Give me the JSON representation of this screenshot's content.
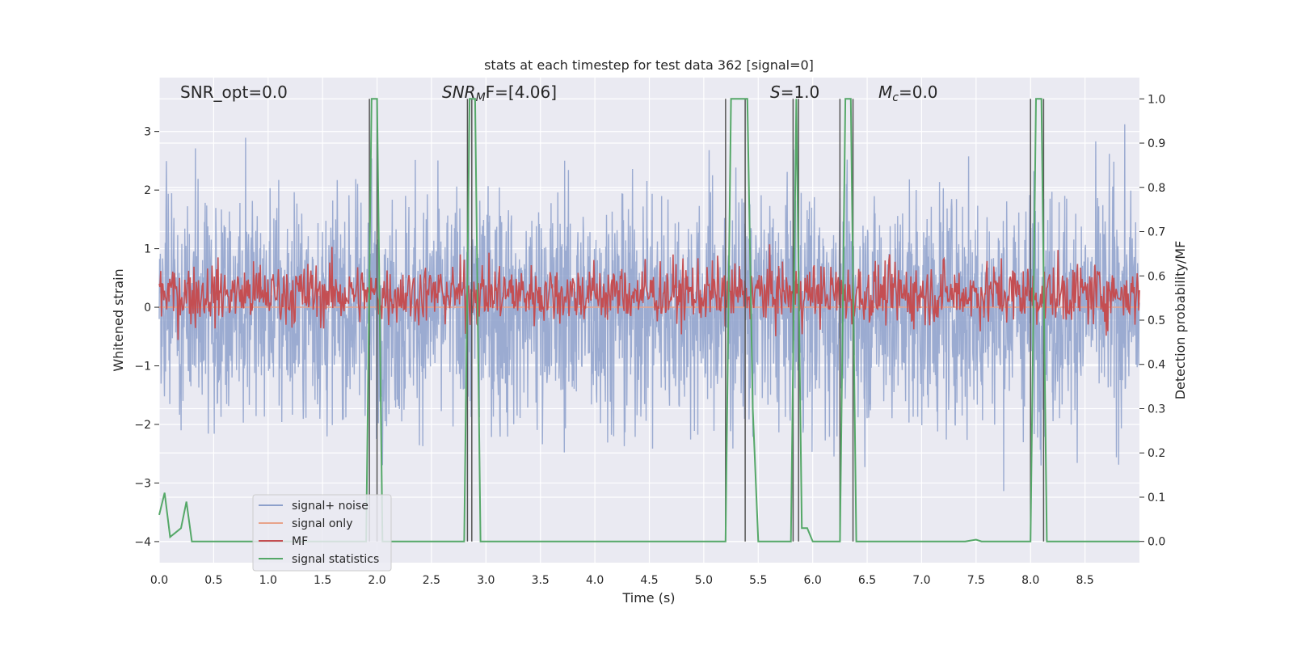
{
  "chart_data": {
    "type": "line",
    "title": "stats at each timestep for test data 362 [signal=0]",
    "xlabel": "Time (s)",
    "ylabel_left": "Whitened strain",
    "ylabel_right": "Detection probability/MF",
    "xlim": [
      0,
      9.0
    ],
    "ylim_left": [
      -4.36,
      3.92
    ],
    "ylim_right": [
      -0.048,
      1.048
    ],
    "x_ticks": [
      "0.0",
      "0.5",
      "1.0",
      "1.5",
      "2.0",
      "2.5",
      "3.0",
      "3.5",
      "4.0",
      "4.5",
      "5.0",
      "5.5",
      "6.0",
      "6.5",
      "7.0",
      "7.5",
      "8.0",
      "8.5"
    ],
    "y_ticks_left": [
      "−4",
      "−3",
      "−2",
      "−1",
      "0",
      "1",
      "2",
      "3"
    ],
    "y_ticks_right": [
      "0.0",
      "0.1",
      "0.2",
      "0.3",
      "0.4",
      "0.5",
      "0.6",
      "0.7",
      "0.8",
      "0.9",
      "1.0"
    ],
    "grid": true,
    "legend_position": "lower-left",
    "annotations": {
      "snr_opt": "SNR_opt=0.0",
      "snr_mf_main": "SNR",
      "snr_mf_sub": "M",
      "snr_mf_rest": "F=[4.06]",
      "s_main": "S",
      "s_rest": "=1.0",
      "mc_main": "M",
      "mc_sub": "c",
      "mc_rest": "=0.0"
    },
    "series": [
      {
        "name": "signal+ noise",
        "color": "#8da0cb",
        "description_values": "whitened noise, roughly ±2.5 strain, spikes to ±3.5",
        "noise_sigma": 1.0
      },
      {
        "name": "signal only",
        "color": "#e8a38a",
        "value": 0.0
      },
      {
        "name": "MF",
        "color": "#c44e52",
        "mean_right_axis": 0.56,
        "spread_right_axis": 0.035
      },
      {
        "name": "signal statistics",
        "color": "#55a868",
        "x": [
          0.0,
          0.05,
          0.1,
          0.15,
          0.2,
          0.25,
          0.3,
          0.35,
          0.5,
          1.0,
          1.5,
          1.9,
          1.95,
          2.0,
          2.05,
          2.1,
          2.5,
          2.8,
          2.85,
          2.9,
          2.95,
          3.0,
          4.0,
          5.0,
          5.2,
          5.25,
          5.4,
          5.45,
          5.5,
          5.55,
          5.8,
          5.85,
          5.9,
          5.95,
          6.0,
          6.25,
          6.3,
          6.35,
          6.4,
          6.45,
          7.0,
          7.4,
          7.5,
          7.55,
          8.0,
          8.05,
          8.1,
          8.15,
          8.2,
          8.25,
          8.5,
          9.0
        ],
        "y": [
          0.06,
          0.11,
          0.01,
          0.02,
          0.03,
          0.09,
          0.0,
          0.0,
          0.0,
          0.0,
          0.0,
          0.0,
          1.0,
          1.0,
          0.0,
          0.0,
          0.0,
          0.0,
          1.0,
          1.0,
          0.0,
          0.0,
          0.0,
          0.0,
          0.0,
          1.0,
          1.0,
          0.3,
          0.0,
          0.0,
          0.0,
          1.0,
          0.03,
          0.03,
          0.0,
          0.0,
          1.0,
          1.0,
          0.0,
          0.0,
          0.0,
          0.0,
          0.004,
          0.0,
          0.0,
          1.0,
          1.0,
          0.0,
          0.0,
          0.0,
          0.0,
          0.0
        ]
      }
    ],
    "vertical_markers_x": [
      1.93,
      2.0,
      2.83,
      2.87,
      5.2,
      5.38,
      5.82,
      5.87,
      6.25,
      6.37,
      8.0,
      8.12
    ]
  }
}
